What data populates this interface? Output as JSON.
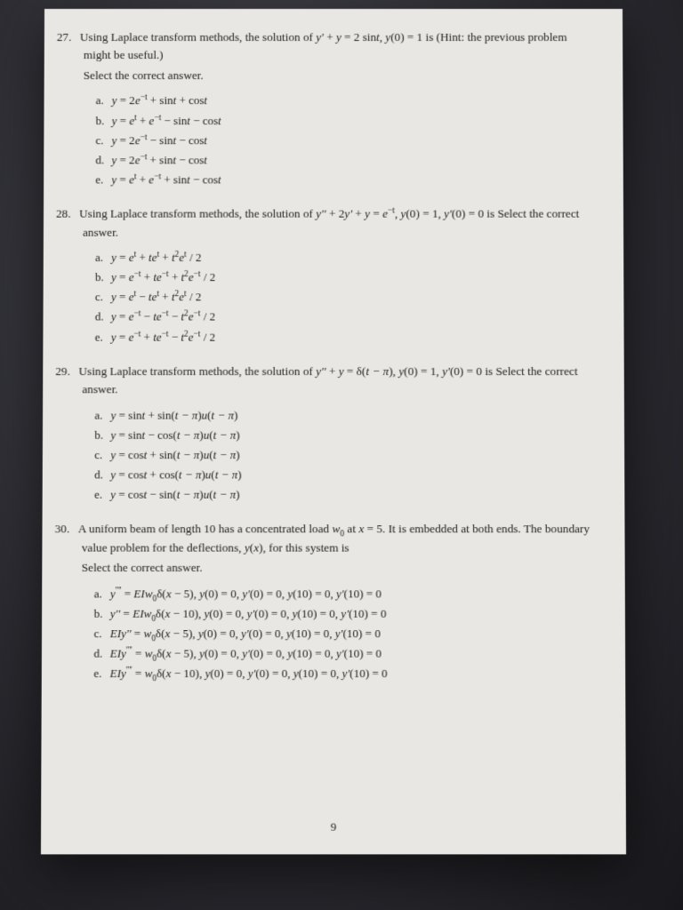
{
  "page_number": "9",
  "problems": [
    {
      "num": "27.",
      "text": "Using Laplace transform methods, the solution of <span class='math'>y'</span> + <span class='math'>y</span> = 2 sin<span class='math'>t</span>, <span class='math'>y</span>(0) = 1 is (Hint: the previous problem might be useful.)",
      "select": "Select the correct answer.",
      "options": [
        "<span class='math'>y</span> = 2<span class='math'>e</span><sup>−t</sup> + sin<span class='math'>t</span> + cos<span class='math'>t</span>",
        "<span class='math'>y</span> = <span class='math'>e</span><sup>t</sup> + <span class='math'>e</span><sup>−t</sup> − sin<span class='math'>t</span> − cos<span class='math'>t</span>",
        "<span class='math'>y</span> = 2<span class='math'>e</span><sup>−t</sup> − sin<span class='math'>t</span> − cos<span class='math'>t</span>",
        "<span class='math'>y</span> = 2<span class='math'>e</span><sup>−t</sup> + sin<span class='math'>t</span> − cos<span class='math'>t</span>",
        "<span class='math'>y</span> = <span class='math'>e</span><sup>t</sup> + <span class='math'>e</span><sup>−t</sup> + sin<span class='math'>t</span> − cos<span class='math'>t</span>"
      ]
    },
    {
      "num": "28.",
      "text": "Using Laplace transform methods, the solution of <span class='math'>y''</span> + 2<span class='math'>y'</span> + <span class='math'>y</span> = <span class='math'>e</span><sup>−t</sup>, <span class='math'>y</span>(0) = 1, <span class='math'>y'</span>(0) = 0 is Select the correct answer.",
      "select": "",
      "options": [
        "<span class='math'>y</span> = <span class='math'>e</span><sup>t</sup> + <span class='math'>te</span><sup>t</sup> + <span class='math'>t</span><sup>2</sup><span class='math'>e</span><sup>t</sup> / 2",
        "<span class='math'>y</span> = <span class='math'>e</span><sup>−t</sup> + <span class='math'>te</span><sup>−t</sup> + <span class='math'>t</span><sup>2</sup><span class='math'>e</span><sup>−t</sup> / 2",
        "<span class='math'>y</span> = <span class='math'>e</span><sup>t</sup> − <span class='math'>te</span><sup>t</sup> + <span class='math'>t</span><sup>2</sup><span class='math'>e</span><sup>t</sup> / 2",
        "<span class='math'>y</span> = <span class='math'>e</span><sup>−t</sup> − <span class='math'>te</span><sup>−t</sup> − <span class='math'>t</span><sup>2</sup><span class='math'>e</span><sup>−t</sup> / 2",
        "<span class='math'>y</span> = <span class='math'>e</span><sup>−t</sup> + <span class='math'>te</span><sup>−t</sup> − <span class='math'>t</span><sup>2</sup><span class='math'>e</span><sup>−t</sup> / 2"
      ]
    },
    {
      "num": "29.",
      "text": "Using Laplace transform methods, the solution of <span class='math'>y''</span> + <span class='math'>y</span> = δ(<span class='math'>t − π</span>), <span class='math'>y</span>(0) = 1, <span class='math'>y'</span>(0) = 0 is Select the correct answer.",
      "select": "",
      "options": [
        "<span class='math'>y</span> = sin<span class='math'>t</span> + sin(<span class='math'>t − π</span>)<span class='math'>u</span>(<span class='math'>t − π</span>)",
        "<span class='math'>y</span> = sin<span class='math'>t</span> − cos(<span class='math'>t − π</span>)<span class='math'>u</span>(<span class='math'>t − π</span>)",
        "<span class='math'>y</span> = cos<span class='math'>t</span> + sin(<span class='math'>t − π</span>)<span class='math'>u</span>(<span class='math'>t − π</span>)",
        "<span class='math'>y</span> = cos<span class='math'>t</span> + cos(<span class='math'>t − π</span>)<span class='math'>u</span>(<span class='math'>t − π</span>)",
        "<span class='math'>y</span> = cos<span class='math'>t</span> − sin(<span class='math'>t − π</span>)<span class='math'>u</span>(<span class='math'>t − π</span>)"
      ]
    },
    {
      "num": "30.",
      "text": "A uniform beam of length 10 has a concentrated load <span class='math'>w</span><sub>0</sub> at <span class='math'>x</span> = 5. It is embedded at both ends. The boundary value problem for the deflections, <span class='math'>y</span>(<span class='math'>x</span>), for this system is",
      "select": "Select the correct answer.",
      "options": [
        "<span class='math'>y</span><sup>''''</sup> = <span class='math'>EIw</span><sub>0</sub>δ(<span class='math'>x</span> − 5), <span class='math'>y</span>(0) = 0, <span class='math'>y'</span>(0) = 0, <span class='math'>y</span>(10) = 0, <span class='math'>y'</span>(10) = 0",
        "<span class='math'>y''</span> = <span class='math'>EIw</span><sub>0</sub>δ(<span class='math'>x</span> − 10), <span class='math'>y</span>(0) = 0, <span class='math'>y'</span>(0) = 0, <span class='math'>y</span>(10) = 0, <span class='math'>y'</span>(10) = 0",
        "<span class='math'>EIy''</span> = <span class='math'>w</span><sub>0</sub>δ(<span class='math'>x</span> − 5), <span class='math'>y</span>(0) = 0, <span class='math'>y'</span>(0) = 0, <span class='math'>y</span>(10) = 0, <span class='math'>y'</span>(10) = 0",
        "<span class='math'>EIy</span><sup>''''</sup> = <span class='math'>w</span><sub>0</sub>δ(<span class='math'>x</span> − 5), <span class='math'>y</span>(0) = 0, <span class='math'>y'</span>(0) = 0, <span class='math'>y</span>(10) = 0, <span class='math'>y'</span>(10) = 0",
        "<span class='math'>EIy</span><sup>''''</sup> = <span class='math'>w</span><sub>0</sub>δ(<span class='math'>x</span> − 10), <span class='math'>y</span>(0) = 0, <span class='math'>y'</span>(0) = 0, <span class='math'>y</span>(10) = 0, <span class='math'>y'</span>(10) = 0"
      ]
    }
  ],
  "option_labels": [
    "a.",
    "b.",
    "c.",
    "d.",
    "e."
  ]
}
